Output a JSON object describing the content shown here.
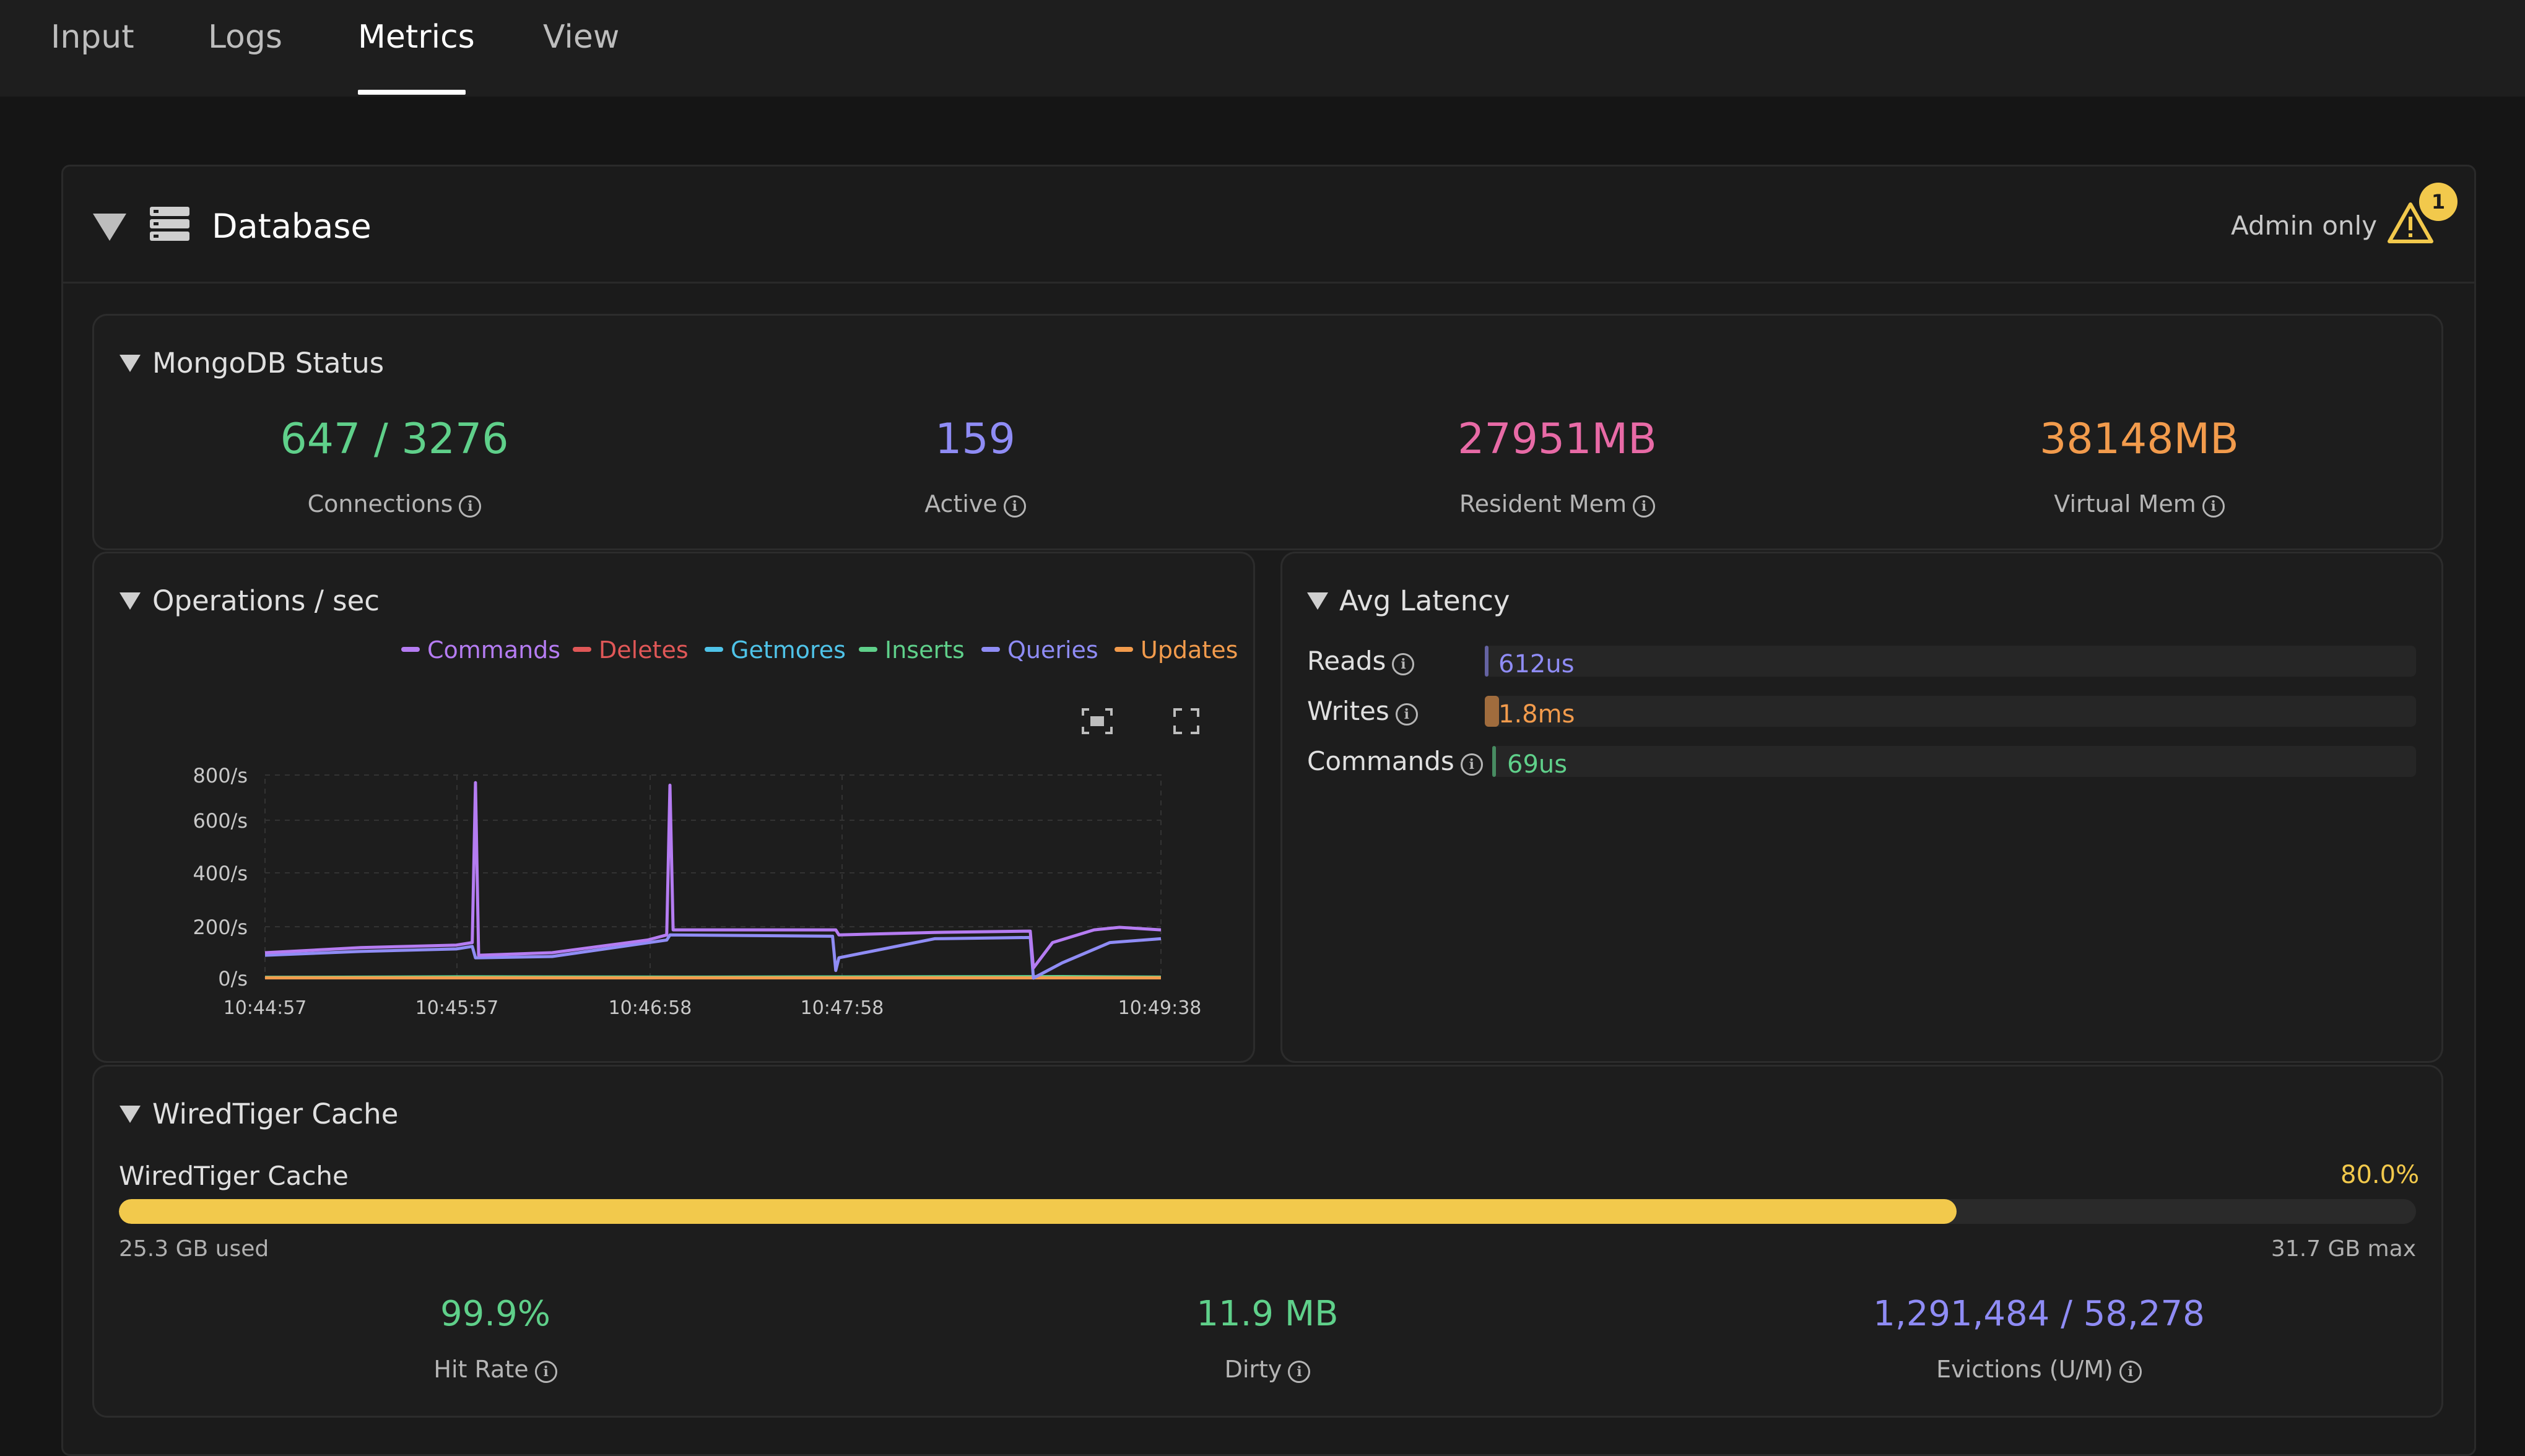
{
  "tabs": [
    {
      "label": "Input"
    },
    {
      "label": "Logs"
    },
    {
      "label": "Metrics",
      "active": true
    },
    {
      "label": "View"
    }
  ],
  "database": {
    "title": "Database",
    "icon": "database-list-icon",
    "admin_label": "Admin only",
    "warning_count": "1"
  },
  "mongodb_status": {
    "title": "MongoDB Status",
    "stats": [
      {
        "value": "647 / 3276",
        "label": "Connections",
        "color": "#5fd08a"
      },
      {
        "value": "159",
        "label": "Active",
        "color": "#8f8cf5"
      },
      {
        "value": "27951MB",
        "label": "Resident Mem",
        "color": "#e86aa6"
      },
      {
        "value": "38148MB",
        "label": "Virtual Mem",
        "color": "#f29b4c"
      }
    ]
  },
  "operations": {
    "title": "Operations / sec",
    "toolbar": {
      "zoom_icon": "zoom-select-icon",
      "fullscreen_icon": "fullscreen-icon"
    }
  },
  "chart_data": {
    "type": "line",
    "title": "",
    "legend_position": "top-right",
    "grid": true,
    "y_ticks": [
      "800/s",
      "600/s",
      "400/s",
      "200/s",
      "0/s"
    ],
    "ylim": [
      0,
      800
    ],
    "x_ticks": [
      "10:44:57",
      "10:45:57",
      "10:46:58",
      "10:47:58",
      "10:49:38"
    ],
    "series": [
      {
        "name": "Commands",
        "color": "#b57cf2",
        "points": [
          [
            0,
            100
          ],
          [
            30,
            120
          ],
          [
            60,
            130
          ],
          [
            65,
            140
          ],
          [
            66,
            770
          ],
          [
            67,
            90
          ],
          [
            90,
            100
          ],
          [
            120,
            150
          ],
          [
            126,
            170
          ],
          [
            127,
            760
          ],
          [
            128,
            190
          ],
          [
            150,
            190
          ],
          [
            178,
            190
          ],
          [
            179,
            190
          ],
          [
            180,
            170
          ],
          [
            210,
            180
          ],
          [
            240,
            185
          ],
          [
            241,
            40
          ],
          [
            247,
            140
          ],
          [
            260,
            190
          ],
          [
            268,
            200
          ],
          [
            281,
            190
          ]
        ]
      },
      {
        "name": "Deletes",
        "color": "#e05757",
        "points": [
          [
            0,
            3
          ],
          [
            281,
            3
          ]
        ]
      },
      {
        "name": "Getmores",
        "color": "#4fc3e8",
        "points": [
          [
            0,
            2
          ],
          [
            281,
            2
          ]
        ]
      },
      {
        "name": "Inserts",
        "color": "#5fd08a",
        "points": [
          [
            0,
            3
          ],
          [
            60,
            5
          ],
          [
            130,
            4
          ],
          [
            250,
            6
          ],
          [
            281,
            4
          ]
        ]
      },
      {
        "name": "Queries",
        "color": "#8f8cf5",
        "points": [
          [
            0,
            90
          ],
          [
            30,
            105
          ],
          [
            60,
            115
          ],
          [
            65,
            125
          ],
          [
            66,
            80
          ],
          [
            90,
            85
          ],
          [
            126,
            150
          ],
          [
            127,
            170
          ],
          [
            178,
            165
          ],
          [
            179,
            30
          ],
          [
            180,
            80
          ],
          [
            210,
            155
          ],
          [
            240,
            160
          ],
          [
            241,
            0
          ],
          [
            250,
            60
          ],
          [
            265,
            140
          ],
          [
            281,
            155
          ]
        ]
      },
      {
        "name": "Updates",
        "color": "#f29b4c",
        "points": [
          [
            0,
            1
          ],
          [
            281,
            1
          ]
        ]
      }
    ]
  },
  "latency": {
    "title": "Avg Latency",
    "rows": [
      {
        "label": "Reads",
        "value": "612us",
        "color": "#8f8cf5",
        "fraction": 0.004
      },
      {
        "label": "Writes",
        "value": "1.8ms",
        "color": "#f29b4c",
        "fraction": 0.015
      },
      {
        "label": "Commands",
        "value": "69us",
        "color": "#5fd08a",
        "fraction": 0.001
      }
    ]
  },
  "wiredtiger": {
    "title": "WiredTiger Cache",
    "bar_label": "WiredTiger Cache",
    "percent_label": "80.0%",
    "percent": 80.0,
    "used": "25.3 GB used",
    "max": "31.7 GB max",
    "stats": [
      {
        "value": "99.9%",
        "label": "Hit Rate",
        "color": "#5fd08a"
      },
      {
        "value": "11.9 MB",
        "label": "Dirty",
        "color": "#5fd08a"
      },
      {
        "value": "1,291,484 / 58,278",
        "label": "Evictions (U/M)",
        "color": "#8f8cf5"
      }
    ]
  }
}
